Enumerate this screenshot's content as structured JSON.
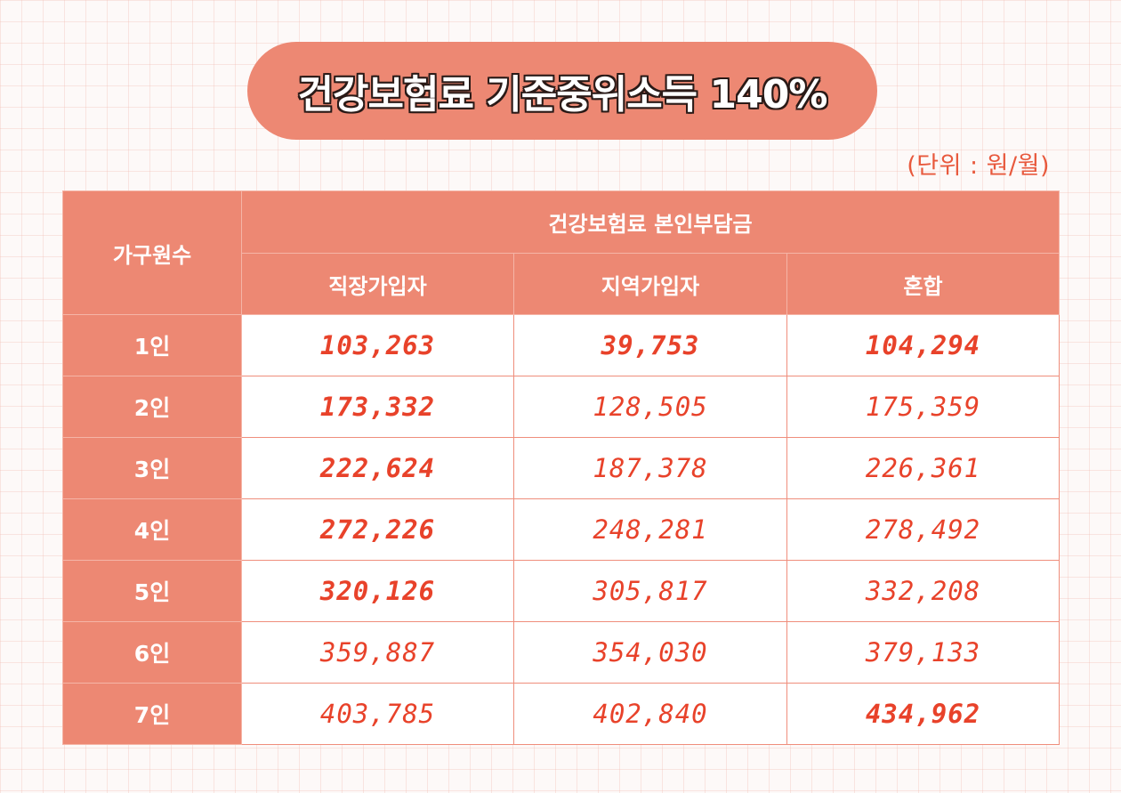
{
  "title": "건강보험료 기준중위소득 140%",
  "unit_note": "(단위 : 원/월)",
  "table": {
    "row_header": "가구원수",
    "group_header": "건강보험료 본인부담금",
    "columns": [
      "직장가입자",
      "지역가입자",
      "혼합"
    ],
    "rows": [
      {
        "label": "1인",
        "values": [
          "103,263",
          "39,753",
          "104,294"
        ]
      },
      {
        "label": "2인",
        "values": [
          "173,332",
          "128,505",
          "175,359"
        ]
      },
      {
        "label": "3인",
        "values": [
          "222,624",
          "187,378",
          "226,361"
        ]
      },
      {
        "label": "4인",
        "values": [
          "272,226",
          "248,281",
          "278,492"
        ]
      },
      {
        "label": "5인",
        "values": [
          "320,126",
          "305,817",
          "332,208"
        ]
      },
      {
        "label": "6인",
        "values": [
          "359,887",
          "354,030",
          "379,133"
        ]
      },
      {
        "label": "7인",
        "values": [
          "403,785",
          "402,840",
          "434,962"
        ]
      }
    ]
  },
  "colors": {
    "accent": "#ed8873",
    "value_text": "#e8422a",
    "border": "#ef8e7c",
    "title_text": "#ffffff"
  }
}
